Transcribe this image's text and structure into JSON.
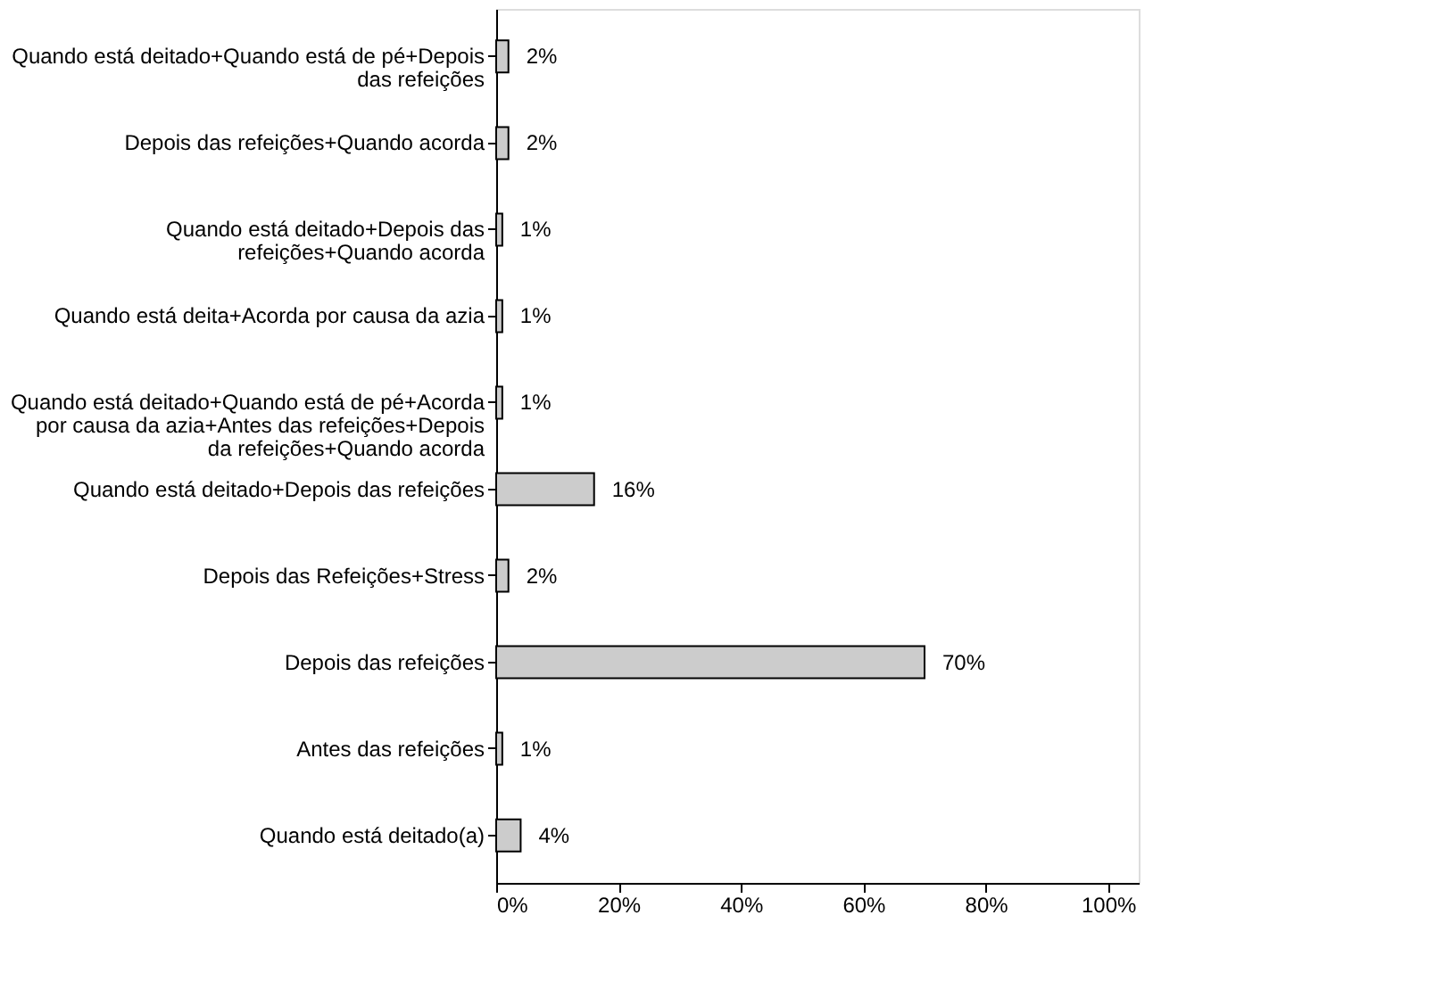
{
  "chart_data": {
    "type": "bar",
    "orientation": "horizontal",
    "categories": [
      "Quando está deitado+Quando está de pé+Depois das refeições",
      "Depois das refeições+Quando acorda",
      "Quando está deitado+Depois das refeições+Quando acorda",
      "Quando está deita+Acorda por causa da azia",
      "Quando está deitado+Quando está de pé+Acorda por causa da azia+Antes das refeições+Depois da refeições+Quando acorda",
      "Quando está deitado+Depois das refeições",
      "Depois das Refeições+Stress",
      "Depois das refeições",
      "Antes das refeições",
      "Quando está deitado(a)"
    ],
    "values": [
      2,
      2,
      1,
      1,
      1,
      16,
      2,
      70,
      1,
      4
    ],
    "value_labels": [
      "2%",
      "2%",
      "1%",
      "1%",
      "1%",
      "16%",
      "2%",
      "70%",
      "1%",
      "4%"
    ],
    "color": "#cccccc",
    "xlim": [
      0,
      105
    ],
    "xticks": [
      {
        "value": 0,
        "label": "0%"
      },
      {
        "value": 20,
        "label": "20%"
      },
      {
        "value": 40,
        "label": "40%"
      },
      {
        "value": 60,
        "label": "60%"
      },
      {
        "value": 80,
        "label": "80%"
      },
      {
        "value": 100,
        "label": "100%"
      }
    ],
    "grid": false
  }
}
